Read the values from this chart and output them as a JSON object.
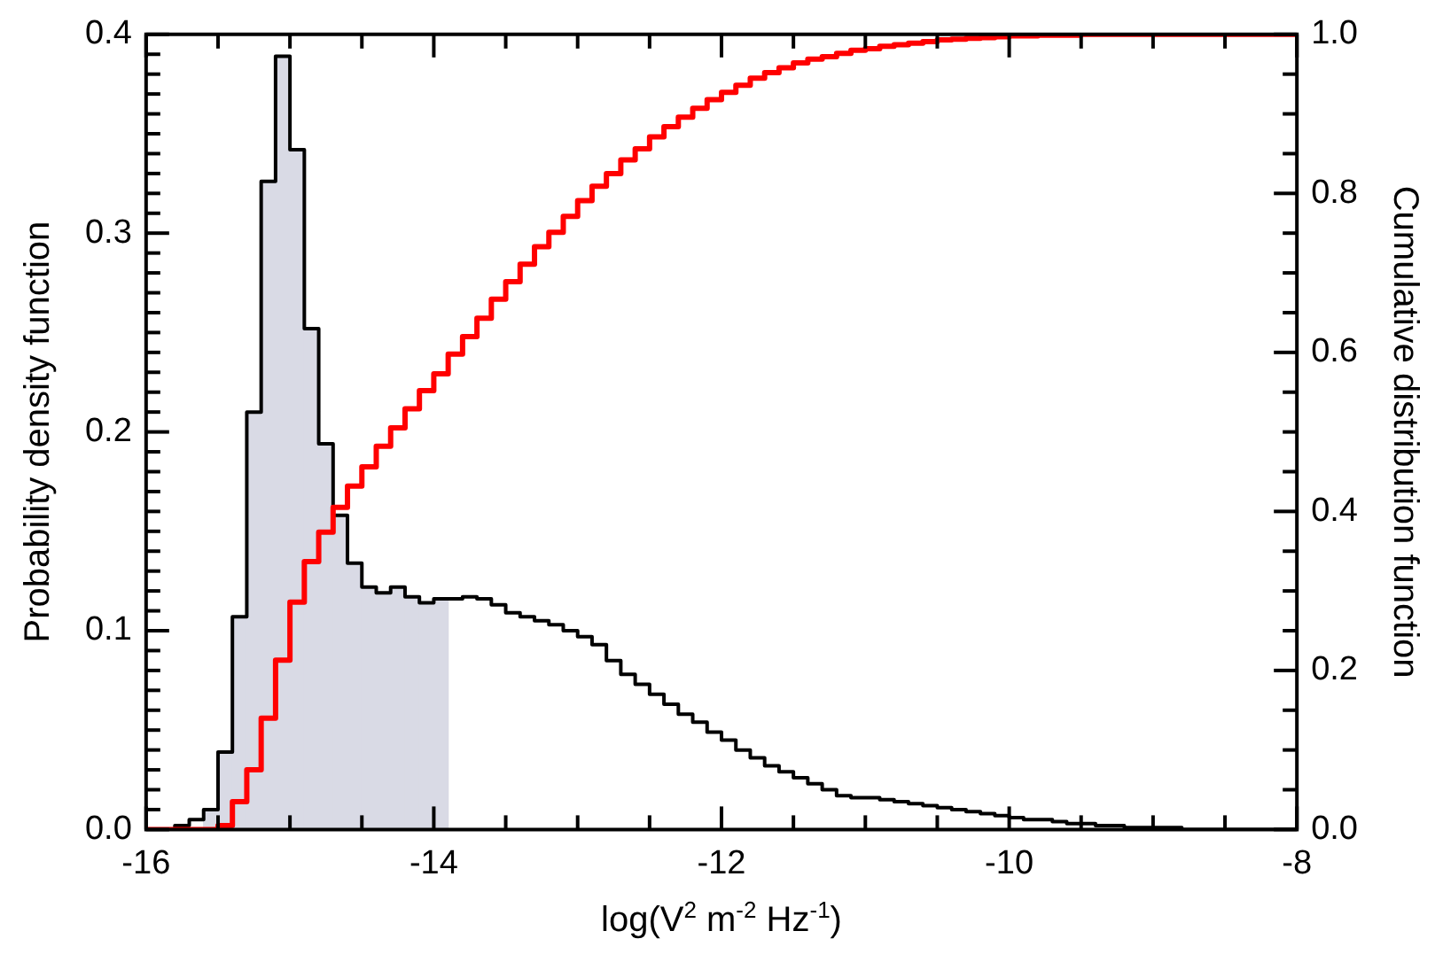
{
  "chart_data": {
    "type": "histogram",
    "xlabel": "log(V$^{2}$ m$^{-2}$ Hz$^{-1}$)",
    "ylabel": "Probability density function",
    "y2label": "Cumulative distribution function",
    "bins": [
      -16,
      -15.9,
      -15.8,
      -15.7,
      -15.6,
      -15.5,
      -15.4,
      -15.3,
      -15.2,
      -15.1,
      -15,
      -14.9,
      -14.8,
      -14.7,
      -14.6,
      -14.5,
      -14.4,
      -14.3,
      -14.2,
      -14.1,
      -14,
      -13.9,
      -13.8,
      -13.7,
      -13.6,
      -13.5,
      -13.4,
      -13.3,
      -13.2,
      -13.1,
      -13,
      -12.9,
      -12.8,
      -12.7,
      -12.6,
      -12.5,
      -12.4,
      -12.3,
      -12.2,
      -12.1,
      -12,
      -11.9,
      -11.8,
      -11.7,
      -11.6,
      -11.5,
      -11.4,
      -11.3,
      -11.2,
      -11.1,
      -11,
      -10.9,
      -10.8,
      -10.7,
      -10.6,
      -10.5,
      -10.4,
      -10.3,
      -10.2,
      -10.1,
      -10,
      -9.9,
      -9.8,
      -9.7,
      -9.6,
      -9.5,
      -9.4,
      -9.3,
      -9.2,
      -9.1,
      -9,
      -8.9,
      -8.8,
      -8.7,
      -8.6,
      -8.5,
      -8.4,
      -8.3,
      -8.2,
      -8.1,
      -8
    ],
    "series": [
      {
        "color": "#d9dae5",
        "values": [
          0,
          0,
          null,
          null,
          0.01,
          0.039,
          0.107,
          0.21,
          0.326,
          0.389,
          0.342,
          0.252,
          0.194,
          0.158,
          0.134,
          0.122,
          0.119,
          0.122,
          0.117,
          0.114,
          0.116,
          null,
          null,
          null,
          null,
          null,
          null,
          null,
          null,
          null,
          null,
          null,
          null,
          null,
          null,
          null,
          null,
          null,
          null,
          null,
          null,
          null,
          null,
          null,
          null,
          null,
          null,
          null,
          null,
          null,
          null,
          null,
          null,
          null,
          null,
          null,
          null,
          null,
          null,
          null,
          null,
          null,
          null,
          null,
          null,
          null,
          null,
          null,
          null,
          null,
          null,
          null,
          null,
          null,
          null,
          null,
          null,
          null,
          null,
          null
        ]
      },
      {
        "type": "step",
        "color": "#000000",
        "x": [
          -16,
          -15.9,
          -15.8,
          -15.7,
          -15.6,
          -15.5,
          -15.4,
          -15.3,
          -15.2,
          -15.1,
          -15,
          -14.9,
          -14.8,
          -14.7,
          -14.6,
          -14.5,
          -14.4,
          -14.3,
          -14.2,
          -14.1,
          -14,
          -13.9,
          -13.8,
          -13.7,
          -13.6,
          -13.5,
          -13.4,
          -13.3,
          -13.2,
          -13.1,
          -13,
          -12.9,
          -12.8,
          -12.7,
          -12.6,
          -12.5,
          -12.4,
          -12.3,
          -12.2,
          -12.1,
          -12,
          -11.9,
          -11.8,
          -11.7,
          -11.6,
          -11.5,
          -11.4,
          -11.3,
          -11.2,
          -11.1,
          -11,
          -10.9,
          -10.8,
          -10.7,
          -10.6,
          -10.5,
          -10.4,
          -10.3,
          -10.2,
          -10.1,
          -10,
          -9.9,
          -9.8,
          -9.7,
          -9.6,
          -9.5,
          -9.4,
          -9.3,
          -9.2,
          -9.1,
          -9,
          -8.9,
          -8.8,
          -8.7,
          -8.6,
          -8.5,
          -8.4,
          -8.3,
          -8.2,
          -8.1,
          -8
        ],
        "values": [
          0,
          0,
          0.002,
          0.005,
          0.01,
          0.039,
          0.107,
          0.21,
          0.326,
          0.389,
          0.342,
          0.252,
          0.194,
          0.158,
          0.134,
          0.122,
          0.119,
          0.122,
          0.117,
          0.114,
          0.116,
          0.116,
          0.117,
          0.116,
          0.113,
          0.109,
          0.107,
          0.105,
          0.103,
          0.1,
          0.097,
          0.093,
          0.085,
          0.078,
          0.073,
          0.068,
          0.063,
          0.058,
          0.054,
          0.049,
          0.045,
          0.04,
          0.036,
          0.032,
          0.029,
          0.026,
          0.023,
          0.02,
          0.017,
          0.016,
          0.016,
          0.015,
          0.014,
          0.013,
          0.012,
          0.011,
          0.01,
          0.009,
          0.008,
          0.007,
          0.006,
          0.005,
          0.005,
          0.004,
          0.003,
          0.003,
          0.002,
          0.002,
          0.001,
          0.001,
          0.001,
          0.001,
          0,
          0,
          0,
          0,
          0,
          0,
          0,
          0,
          0
        ]
      },
      {
        "type": "step",
        "axis": "y2",
        "color": "#ff0000",
        "x": [
          -16,
          -15.9,
          -15.8,
          -15.7,
          -15.6,
          -15.5,
          -15.4,
          -15.3,
          -15.2,
          -15.1,
          -15,
          -14.9,
          -14.8,
          -14.7,
          -14.6,
          -14.5,
          -14.4,
          -14.3,
          -14.2,
          -14.1,
          -14,
          -13.9,
          -13.8,
          -13.7,
          -13.6,
          -13.5,
          -13.4,
          -13.3,
          -13.2,
          -13.1,
          -13,
          -12.9,
          -12.8,
          -12.7,
          -12.6,
          -12.5,
          -12.4,
          -12.3,
          -12.2,
          -12.1,
          -12,
          -11.9,
          -11.8,
          -11.7,
          -11.6,
          -11.5,
          -11.4,
          -11.3,
          -11.2,
          -11.1,
          -11,
          -10.9,
          -10.8,
          -10.7,
          -10.6,
          -10.5,
          -10.4,
          -10.3,
          -10.2,
          -10.1,
          -10,
          -9.9,
          -9.8,
          -9.7,
          -9.6,
          -9.5,
          -9.4,
          -9.3,
          -9.2,
          -9.1,
          -9,
          -8.9,
          -8.8,
          -8.7,
          -8.6,
          -8.5,
          -8.4,
          -8.3,
          -8.2,
          -8.1,
          -8
        ],
        "values": [
          0,
          0,
          0,
          0,
          0,
          0.005,
          0.035,
          0.075,
          0.14,
          0.213,
          0.286,
          0.337,
          0.374,
          0.405,
          0.432,
          0.456,
          0.482,
          0.505,
          0.529,
          0.552,
          0.573,
          0.598,
          0.62,
          0.643,
          0.667,
          0.689,
          0.711,
          0.733,
          0.751,
          0.771,
          0.791,
          0.809,
          0.825,
          0.842,
          0.856,
          0.871,
          0.884,
          0.896,
          0.907,
          0.918,
          0.927,
          0.936,
          0.945,
          0.952,
          0.958,
          0.964,
          0.969,
          0.972,
          0.976,
          0.98,
          0.982,
          0.985,
          0.987,
          0.989,
          0.991,
          0.993,
          0.994,
          0.995,
          0.996,
          0.997,
          0.998,
          0.998,
          0.999,
          0.999,
          0.999,
          1,
          1,
          1,
          1,
          1,
          1,
          1,
          1,
          1,
          1,
          1,
          1,
          1,
          1,
          1,
          1
        ]
      }
    ],
    "xlim": [
      -16,
      -8
    ],
    "xticks": [
      -16,
      {
        "value": -15.5,
        "label": null
      },
      {
        "value": -15,
        "label": null
      },
      {
        "value": -14.5,
        "label": null
      },
      -14,
      {
        "value": -13.5,
        "label": null
      },
      {
        "value": -13,
        "label": null
      },
      {
        "value": -12.5,
        "label": null
      },
      -12,
      {
        "value": -11.5,
        "label": null
      },
      {
        "value": -11,
        "label": null
      },
      {
        "value": -10.5,
        "label": null
      },
      -10,
      {
        "value": -9.5,
        "label": null
      },
      {
        "value": -9,
        "label": null
      },
      {
        "value": -8.5,
        "label": null
      },
      -8
    ],
    "ylim": [
      0,
      0.4
    ],
    "yticks": [
      {
        "value": 0,
        "label": "0.0"
      },
      {
        "value": 0.01,
        "label": null
      },
      {
        "value": 0.02,
        "label": null
      },
      {
        "value": 0.03,
        "label": null
      },
      {
        "value": 0.04,
        "label": null
      },
      {
        "value": 0.05,
        "label": null
      },
      {
        "value": 0.06,
        "label": null
      },
      {
        "value": 0.07,
        "label": null
      },
      {
        "value": 0.08,
        "label": null
      },
      {
        "value": 0.09,
        "label": null
      },
      0.1,
      {
        "value": 0.11,
        "label": null
      },
      {
        "value": 0.12,
        "label": null
      },
      {
        "value": 0.13,
        "label": null
      },
      {
        "value": 0.14,
        "label": null
      },
      {
        "value": 0.15,
        "label": null
      },
      {
        "value": 0.16,
        "label": null
      },
      {
        "value": 0.17,
        "label": null
      },
      {
        "value": 0.18,
        "label": null
      },
      {
        "value": 0.19,
        "label": null
      },
      0.2,
      {
        "value": 0.21,
        "label": null
      },
      {
        "value": 0.22,
        "label": null
      },
      {
        "value": 0.23,
        "label": null
      },
      {
        "value": 0.24,
        "label": null
      },
      {
        "value": 0.25,
        "label": null
      },
      {
        "value": 0.26,
        "label": null
      },
      {
        "value": 0.27,
        "label": null
      },
      {
        "value": 0.28,
        "label": null
      },
      {
        "value": 0.29,
        "label": null
      },
      0.3,
      {
        "value": 0.31,
        "label": null
      },
      {
        "value": 0.32,
        "label": null
      },
      {
        "value": 0.33,
        "label": null
      },
      {
        "value": 0.34,
        "label": null
      },
      {
        "value": 0.35,
        "label": null
      },
      {
        "value": 0.36,
        "label": null
      },
      {
        "value": 0.37,
        "label": null
      },
      {
        "value": 0.38,
        "label": null
      },
      {
        "value": 0.39,
        "label": null
      },
      0.4
    ],
    "y2lim": [
      0,
      1
    ],
    "y2ticks": [
      {
        "value": 0,
        "label": "0.0"
      },
      {
        "value": 0.05,
        "label": null
      },
      {
        "value": 0.1,
        "label": null
      },
      {
        "value": 0.15,
        "label": null
      },
      0.2,
      {
        "value": 0.25,
        "label": null
      },
      {
        "value": 0.3,
        "label": null
      },
      {
        "value": 0.35,
        "label": null
      },
      0.4,
      {
        "value": 0.45,
        "label": null
      },
      {
        "value": 0.5,
        "label": null
      },
      {
        "value": 0.55,
        "label": null
      },
      0.6,
      {
        "value": 0.65,
        "label": null
      },
      {
        "value": 0.7,
        "label": null
      },
      {
        "value": 0.75,
        "label": null
      },
      0.8,
      {
        "value": 0.85,
        "label": null
      },
      {
        "value": 0.9,
        "label": null
      },
      {
        "value": 0.95,
        "label": null
      },
      {
        "value": 1,
        "label": "1.0"
      }
    ],
    "grid": false,
    "legend": false
  }
}
